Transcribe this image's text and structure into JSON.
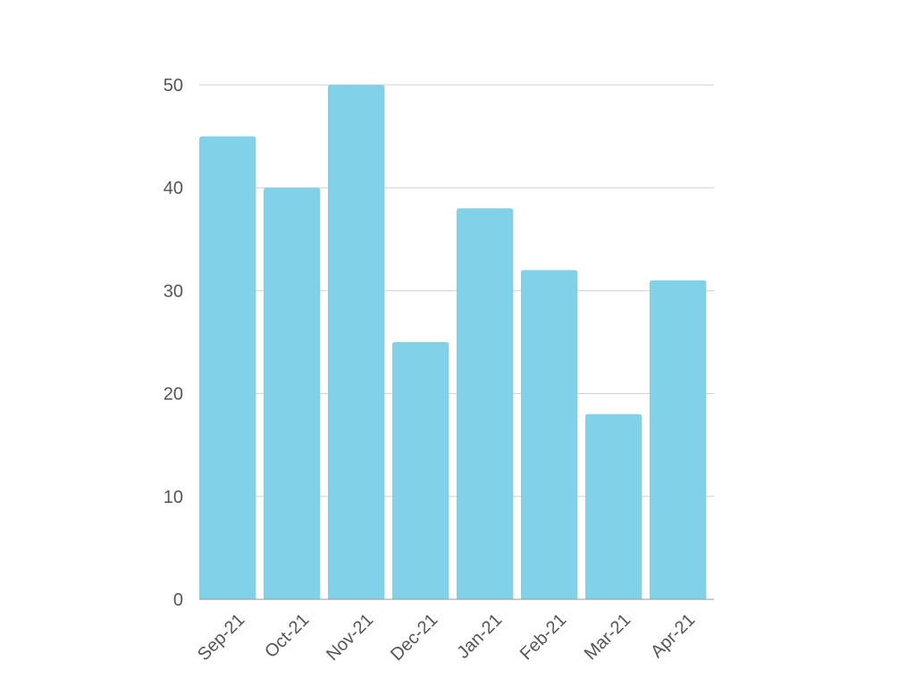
{
  "chart_data": {
    "type": "bar",
    "categories": [
      "Sep-21",
      "Oct-21",
      "Nov-21",
      "Dec-21",
      "Jan-21",
      "Feb-21",
      "Mar-21",
      "Apr-21"
    ],
    "values": [
      45,
      40,
      50,
      25,
      38,
      32,
      18,
      31
    ],
    "title": "",
    "xlabel": "",
    "ylabel": "",
    "ylim": [
      0,
      50
    ],
    "yticks": [
      0,
      10,
      20,
      30,
      40,
      50
    ],
    "grid": true,
    "legend": "none",
    "bar_color": "#81d1e8",
    "grid_color": "#cfcfcf",
    "tick_label_color": "#555555"
  }
}
